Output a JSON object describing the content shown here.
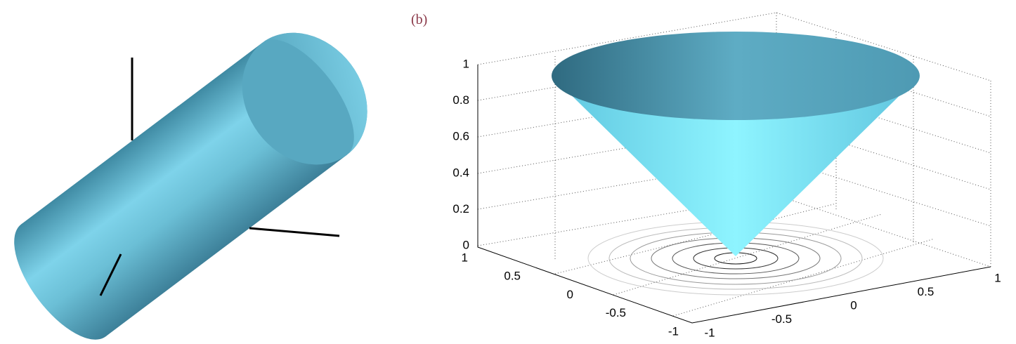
{
  "panels": [
    {
      "label": ")"
    },
    {
      "label": "(b)",
      "zticks": [
        0,
        0.2,
        0.4,
        0.6,
        0.8,
        1
      ],
      "yticks": [
        1,
        0.5,
        0,
        -0.5,
        -1
      ],
      "xticks": [
        -1,
        -0.5,
        0,
        0.5,
        1
      ]
    }
  ]
}
